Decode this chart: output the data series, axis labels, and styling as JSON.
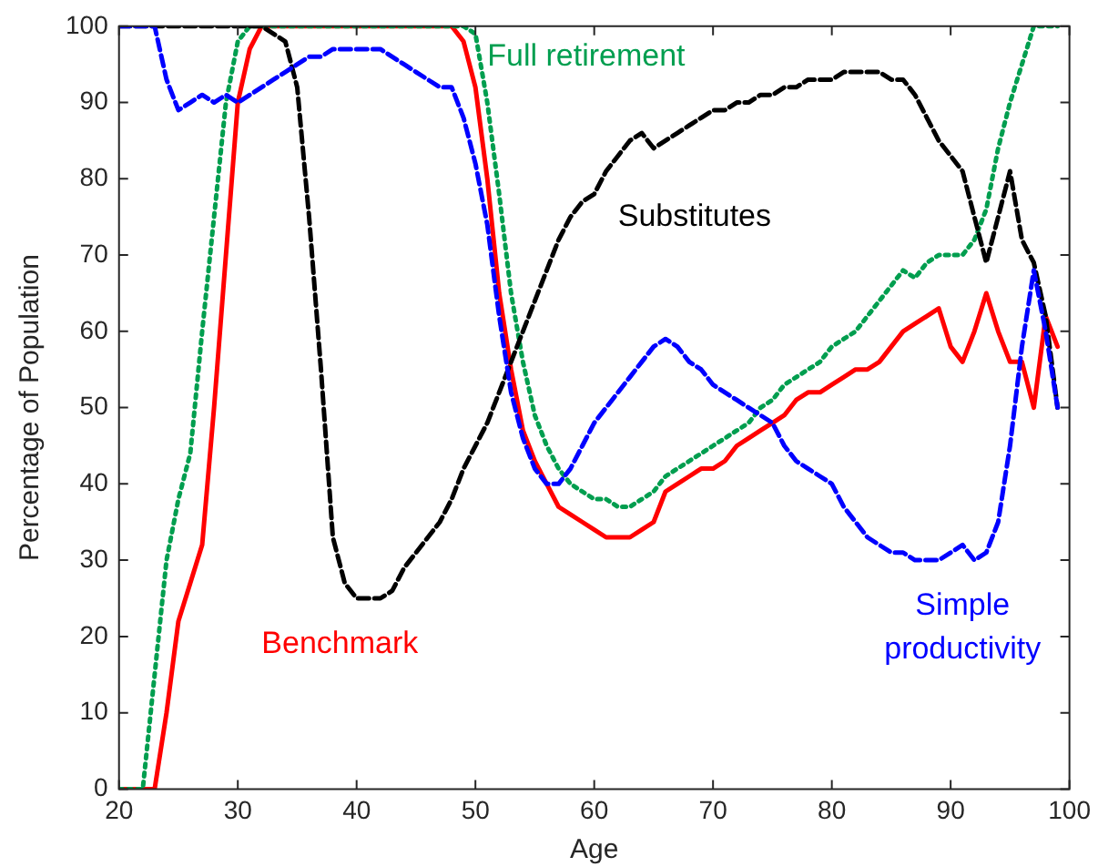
{
  "chart_data": {
    "type": "line",
    "xlabel": "Age",
    "ylabel": "Percentage of Population",
    "x": [
      20,
      21,
      22,
      23,
      24,
      25,
      26,
      27,
      28,
      29,
      30,
      31,
      32,
      33,
      34,
      35,
      36,
      37,
      38,
      39,
      40,
      41,
      42,
      43,
      44,
      45,
      46,
      47,
      48,
      49,
      50,
      51,
      52,
      53,
      54,
      55,
      56,
      57,
      58,
      59,
      60,
      61,
      62,
      63,
      64,
      65,
      66,
      67,
      68,
      69,
      70,
      71,
      72,
      73,
      74,
      75,
      76,
      77,
      78,
      79,
      80,
      81,
      82,
      83,
      84,
      85,
      86,
      87,
      88,
      89,
      90,
      91,
      92,
      93,
      94,
      95,
      96,
      97,
      98,
      99
    ],
    "series": [
      {
        "name": "Benchmark",
        "color": "#ff0000",
        "line_style": "solid",
        "values": [
          0,
          0,
          0,
          0,
          10,
          22,
          27,
          32,
          50,
          70,
          90,
          97,
          100,
          100,
          100,
          100,
          100,
          100,
          100,
          100,
          100,
          100,
          100,
          100,
          100,
          100,
          100,
          100,
          100,
          98,
          92,
          80,
          65,
          55,
          47,
          43,
          40,
          37,
          36,
          35,
          34,
          33,
          33,
          33,
          34,
          35,
          39,
          40,
          41,
          42,
          42,
          43,
          45,
          46,
          47,
          48,
          49,
          51,
          52,
          52,
          53,
          54,
          55,
          55,
          56,
          58,
          60,
          61,
          62,
          63,
          58,
          56,
          60,
          65,
          60,
          56,
          56,
          50,
          62,
          58
        ]
      },
      {
        "name": "Full retirement",
        "color": "#009e4f",
        "line_style": "dotted",
        "values": [
          0,
          0,
          0,
          15,
          30,
          38,
          44,
          60,
          75,
          90,
          98,
          100,
          100,
          100,
          100,
          100,
          100,
          100,
          100,
          100,
          100,
          100,
          100,
          100,
          100,
          100,
          100,
          100,
          100,
          100,
          99,
          90,
          78,
          65,
          56,
          49,
          45,
          42,
          40,
          39,
          38,
          38,
          37,
          37,
          38,
          39,
          41,
          42,
          43,
          44,
          45,
          46,
          47,
          48,
          50,
          51,
          53,
          54,
          55,
          56,
          58,
          59,
          60,
          62,
          64,
          66,
          68,
          67,
          69,
          70,
          70,
          70,
          72,
          76,
          84,
          90,
          95,
          100,
          100,
          100
        ]
      },
      {
        "name": "Substitutes",
        "color": "#000000",
        "line_style": "dashed",
        "values": [
          100,
          100,
          100,
          100,
          100,
          100,
          100,
          100,
          100,
          100,
          100,
          100,
          100,
          99,
          98,
          92,
          75,
          55,
          33,
          27,
          25,
          25,
          25,
          26,
          29,
          31,
          33,
          35,
          38,
          42,
          45,
          48,
          52,
          56,
          60,
          64,
          68,
          72,
          75,
          77,
          78,
          81,
          83,
          85,
          86,
          84,
          85,
          86,
          87,
          88,
          89,
          89,
          90,
          90,
          91,
          91,
          92,
          92,
          93,
          93,
          93,
          94,
          94,
          94,
          94,
          93,
          93,
          91,
          88,
          85,
          83,
          81,
          75,
          69,
          75,
          81,
          72,
          69,
          62,
          50
        ]
      },
      {
        "name": "Simple productivity",
        "color": "#0000ff",
        "line_style": "dashed",
        "values": [
          100,
          100,
          100,
          100,
          93,
          89,
          90,
          91,
          90,
          91,
          90,
          91,
          92,
          93,
          94,
          95,
          96,
          96,
          97,
          97,
          97,
          97,
          97,
          96,
          95,
          94,
          93,
          92,
          92,
          88,
          82,
          74,
          62,
          52,
          46,
          42,
          40,
          40,
          42,
          45,
          48,
          50,
          52,
          54,
          56,
          58,
          59,
          58,
          56,
          55,
          53,
          52,
          51,
          50,
          49,
          48,
          45,
          43,
          42,
          41,
          40,
          37,
          35,
          33,
          32,
          31,
          31,
          30,
          30,
          30,
          31,
          32,
          30,
          31,
          35,
          45,
          58,
          68,
          60,
          50
        ]
      }
    ],
    "xlim": [
      20,
      100
    ],
    "xticks": [
      20,
      30,
      40,
      50,
      60,
      70,
      80,
      90,
      100
    ],
    "ylim": [
      0,
      100
    ],
    "yticks": [
      0,
      10,
      20,
      30,
      40,
      50,
      60,
      70,
      80,
      90,
      100
    ],
    "grid": false,
    "legend": false,
    "marker": "none"
  }
}
